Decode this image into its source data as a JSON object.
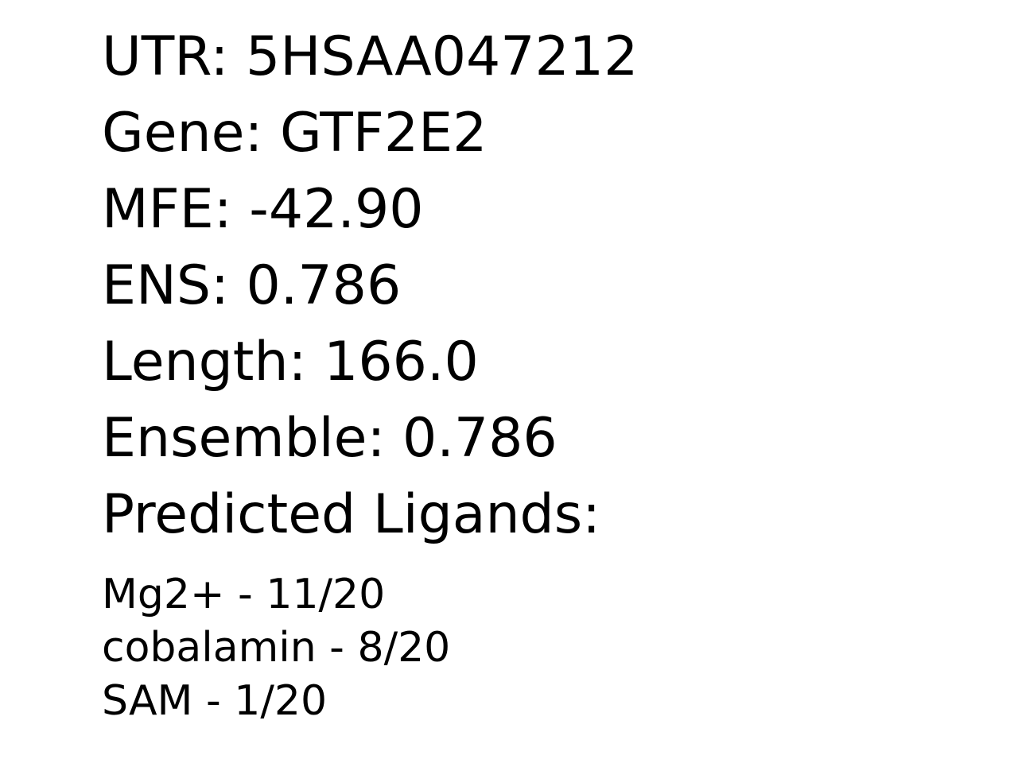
{
  "utr": {
    "label": "UTR:",
    "value": "5HSAA047212"
  },
  "gene": {
    "label": "Gene:",
    "value": "GTF2E2"
  },
  "mfe": {
    "label": "MFE:",
    "value": "-42.90"
  },
  "ens": {
    "label": "ENS:",
    "value": "0.786"
  },
  "length": {
    "label": "Length:",
    "value": "166.0"
  },
  "ensemble": {
    "label": "Ensemble:",
    "value": "0.786"
  },
  "ligands_heading": "Predicted Ligands:",
  "ligands": [
    {
      "name": "Mg2+",
      "count": "11/20"
    },
    {
      "name": "cobalamin",
      "count": "8/20"
    },
    {
      "name": "SAM",
      "count": "1/20"
    }
  ]
}
